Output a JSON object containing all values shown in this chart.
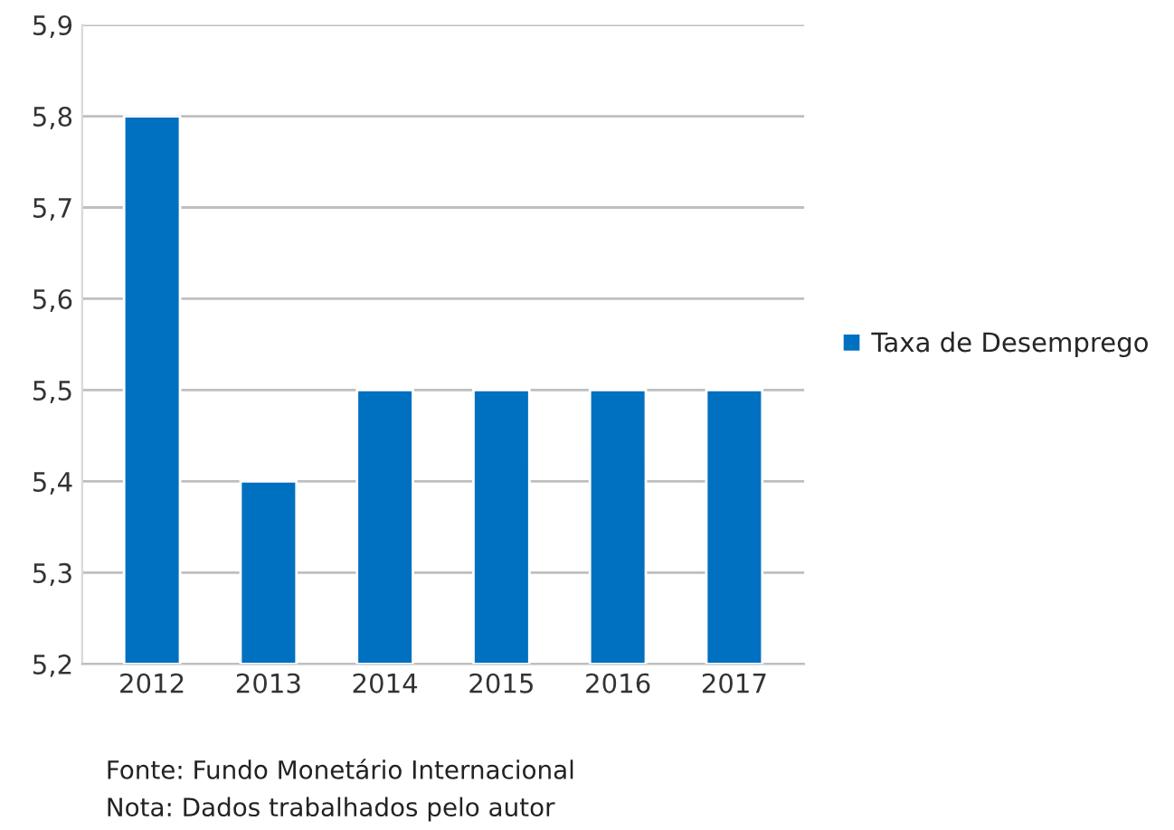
{
  "chart_data": {
    "type": "bar",
    "categories": [
      "2012",
      "2013",
      "2014",
      "2015",
      "2016",
      "2017"
    ],
    "series": [
      {
        "name": "Taxa de Desemprego",
        "color": "#0070c0",
        "values": [
          5.8,
          5.4,
          5.5,
          5.5,
          5.5,
          5.5
        ]
      }
    ],
    "ylim": [
      5.2,
      5.9
    ],
    "yticks": [
      {
        "value": 5.2,
        "label": "5,2"
      },
      {
        "value": 5.3,
        "label": "5,3"
      },
      {
        "value": 5.4,
        "label": "5,4"
      },
      {
        "value": 5.5,
        "label": "5,5"
      },
      {
        "value": 5.6,
        "label": "5,6"
      },
      {
        "value": 5.7,
        "label": "5,7"
      },
      {
        "value": 5.8,
        "label": "5,8"
      },
      {
        "value": 5.9,
        "label": "5,9"
      }
    ],
    "grid": "y",
    "legend": "right",
    "annotations": [
      "Fonte: Fundo Monetário Internacional",
      "Nota: Dados trabalhados pelo autor"
    ]
  }
}
